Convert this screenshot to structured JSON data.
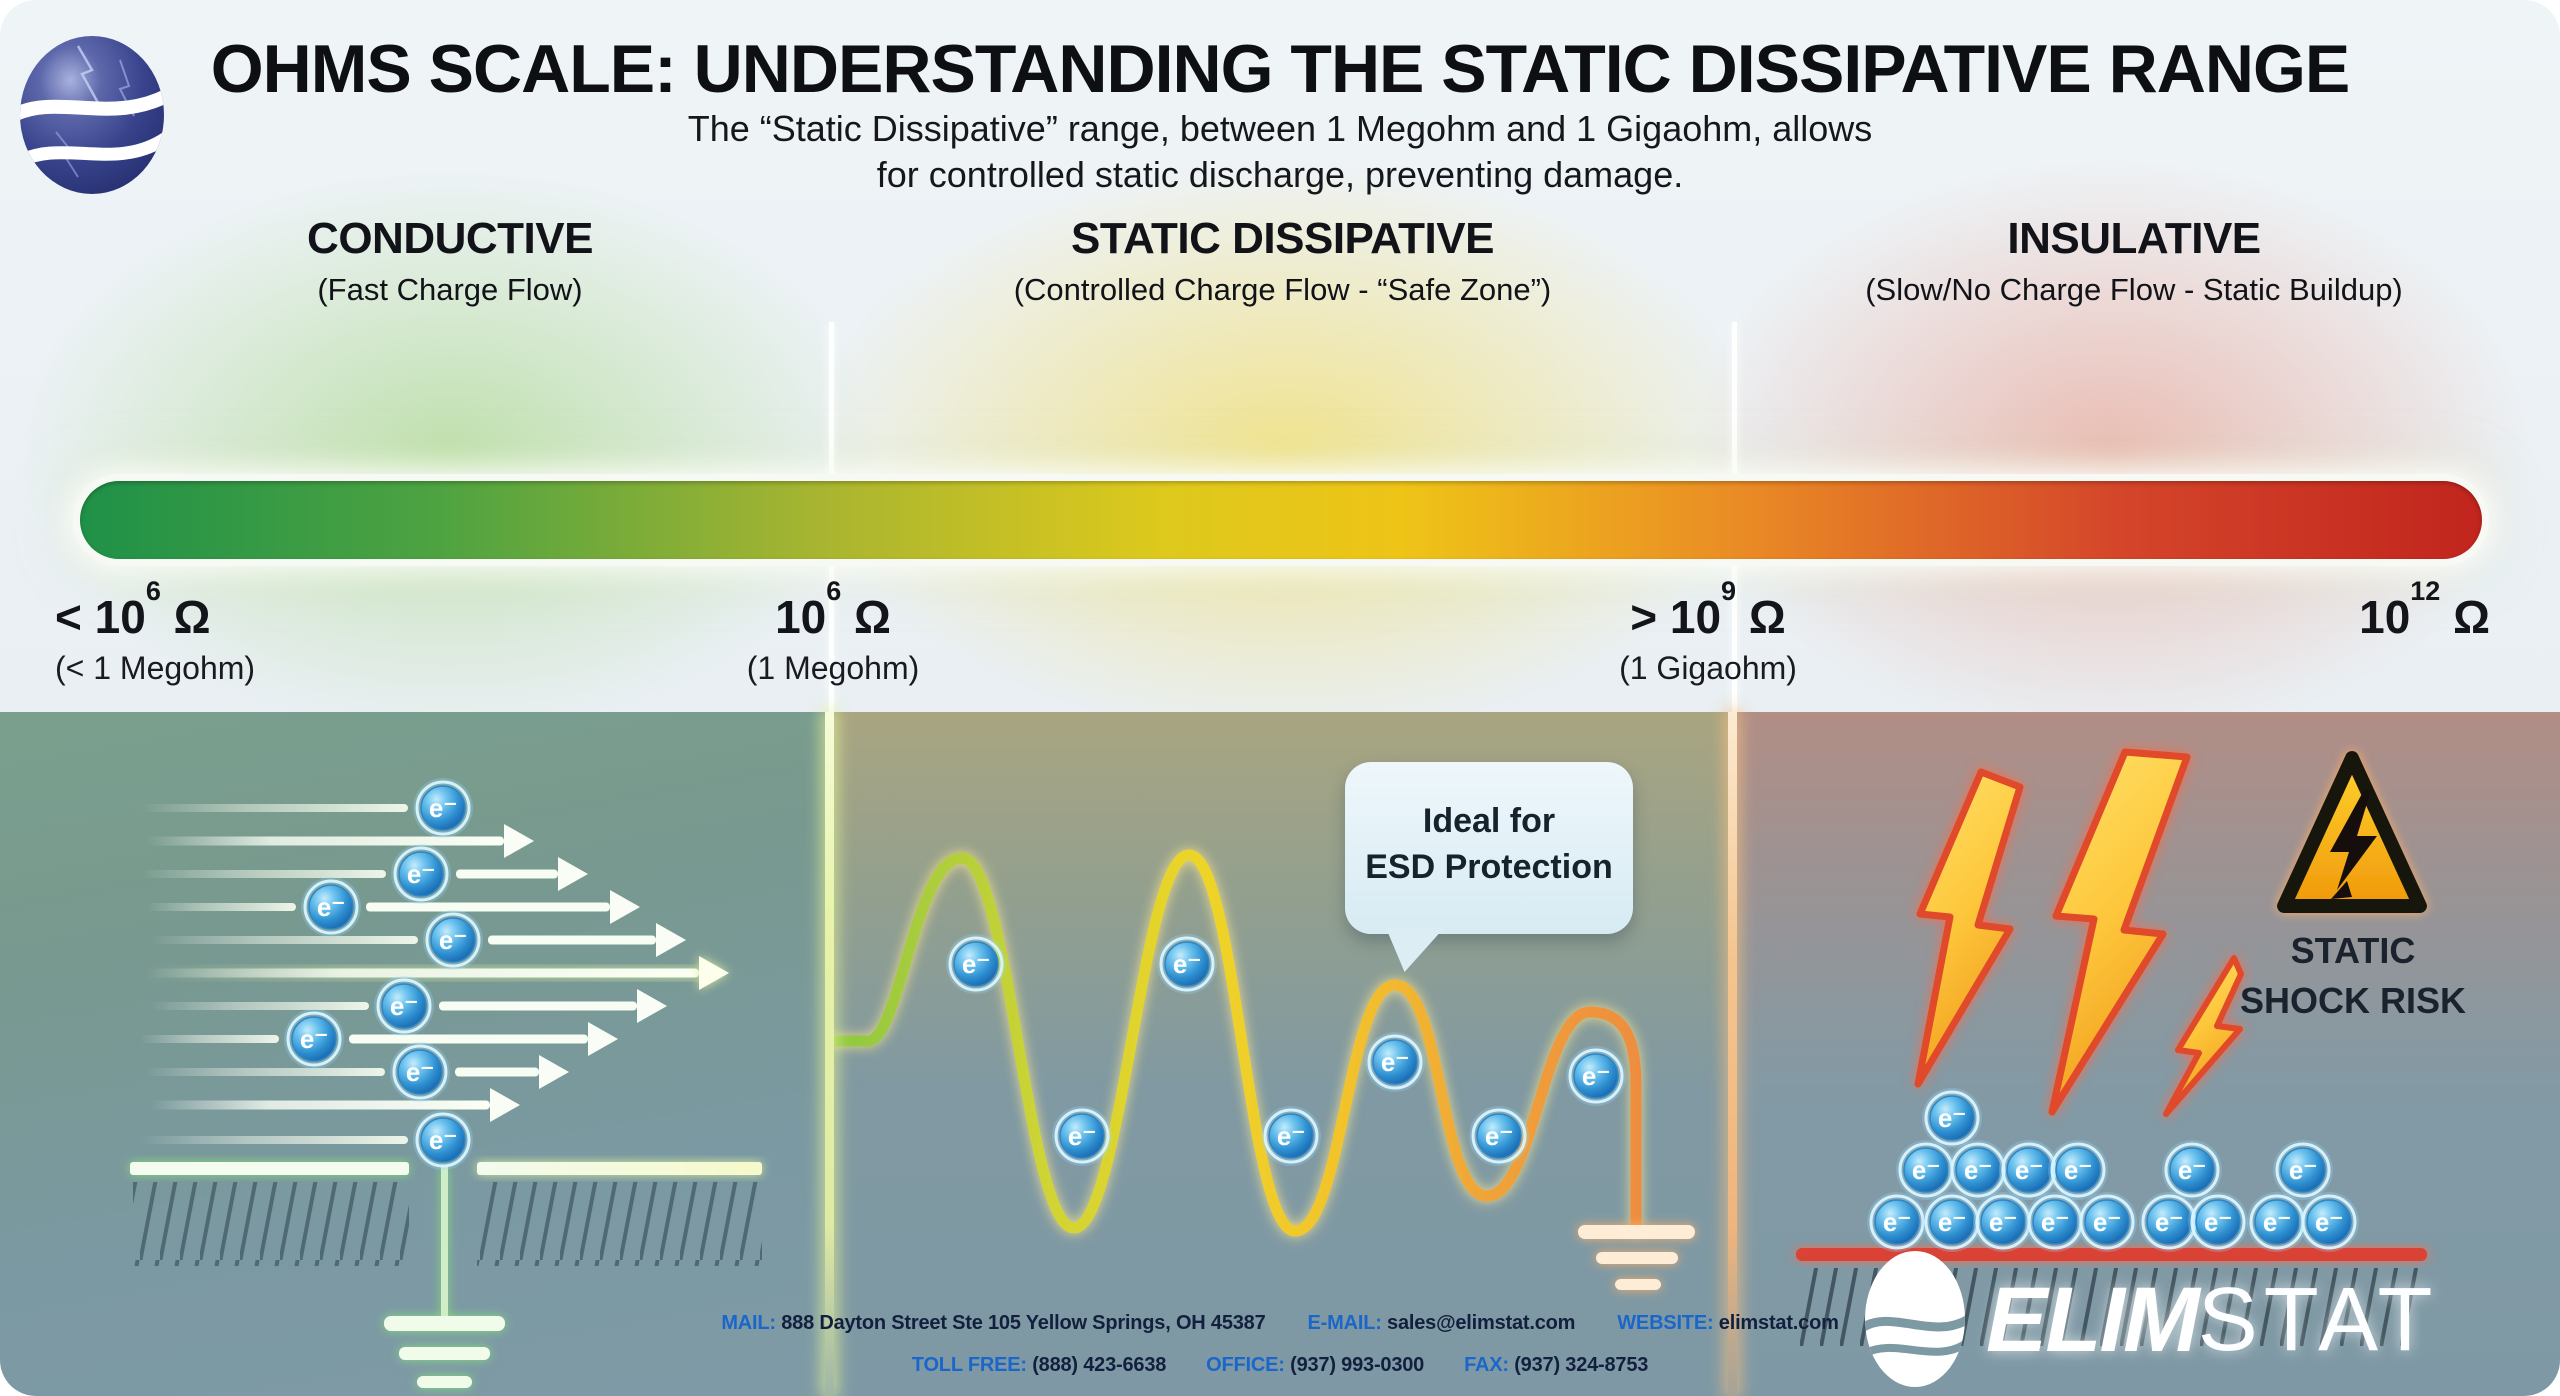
{
  "header": {
    "title": "OHMS SCALE: UNDERSTANDING THE STATIC DISSIPATIVE RANGE",
    "subtitle_line1": "The “Static Dissipative” range, between 1 Megohm and 1 Gigaohm, allows",
    "subtitle_line2": "for controlled static discharge, preventing damage."
  },
  "zones": [
    {
      "name": "CONDUCTIVE",
      "description": "(Fast Charge Flow)",
      "color": "#2f9e4d"
    },
    {
      "name": "STATIC DISSIPATIVE",
      "description": "(Controlled Charge Flow - “Safe Zone”)",
      "color": "#e8c51d"
    },
    {
      "name": "INSULATIVE",
      "description": "(Slow/No Charge Flow - Static Buildup)",
      "color": "#c62f22"
    }
  ],
  "scale_ticks": [
    {
      "prefix": "< 10",
      "exponent": "6",
      "unit": "Ω",
      "sublabel": "(< 1 Megohm)"
    },
    {
      "prefix": "10",
      "exponent": "6",
      "unit": "Ω",
      "sublabel": "(1 Megohm)"
    },
    {
      "prefix": "> 10",
      "exponent": "9",
      "unit": "Ω",
      "sublabel": "(1 Gigaohm)"
    },
    {
      "prefix": "10",
      "exponent": "12",
      "unit": "Ω",
      "sublabel": ""
    }
  ],
  "illustrations": {
    "electron_label": "e⁻",
    "callout_line1": "Ideal for",
    "callout_line2": "ESD Protection",
    "warning_line1": "STATIC",
    "warning_line2": "SHOCK RISK"
  },
  "footer": {
    "contact": [
      {
        "label": "MAIL:",
        "value": "888 Dayton Street Ste 105 Yellow Springs, OH 45387"
      },
      {
        "label": "E-MAIL:",
        "value": "sales@elimstat.com"
      },
      {
        "label": "WEBSITE:",
        "value": "elimstat.com"
      }
    ],
    "phones": [
      {
        "label": "TOLL FREE:",
        "value": "(888) 423-6638"
      },
      {
        "label": "OFFICE:",
        "value": "(937) 993-0300"
      },
      {
        "label": "FAX:",
        "value": "(937) 324-8753"
      }
    ],
    "brand_bold": "ELIM",
    "brand_light": "STAT"
  }
}
